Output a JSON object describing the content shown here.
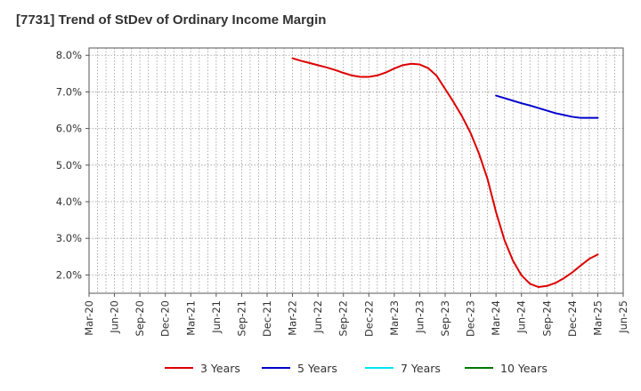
{
  "chart_data": {
    "type": "line",
    "title": "[7731]  Trend of StDev of Ordinary Income Margin",
    "xlabel": "",
    "ylabel": "",
    "x_ticks": [
      "Mar-20",
      "Jun-20",
      "Sep-20",
      "Dec-20",
      "Mar-21",
      "Jun-21",
      "Sep-21",
      "Dec-21",
      "Mar-22",
      "Jun-22",
      "Sep-22",
      "Dec-22",
      "Mar-23",
      "Jun-23",
      "Sep-23",
      "Dec-23",
      "Mar-24",
      "Jun-24",
      "Sep-24",
      "Dec-24",
      "Mar-25",
      "Jun-25"
    ],
    "y_ticks": [
      "2.0%",
      "3.0%",
      "4.0%",
      "5.0%",
      "6.0%",
      "7.0%",
      "8.0%"
    ],
    "ylim": [
      1.5,
      8.2
    ],
    "grid": true,
    "legend_position": "bottom",
    "series": [
      {
        "name": "3 Years",
        "color": "#dd0000",
        "x": [
          "Mar-22",
          "Apr-22",
          "May-22",
          "Jun-22",
          "Jul-22",
          "Aug-22",
          "Sep-22",
          "Oct-22",
          "Nov-22",
          "Dec-22",
          "Jan-23",
          "Feb-23",
          "Mar-23",
          "Apr-23",
          "May-23",
          "Jun-23",
          "Jul-23",
          "Aug-23",
          "Sep-23",
          "Oct-23",
          "Nov-23",
          "Dec-23",
          "Jan-24",
          "Feb-24",
          "Mar-24",
          "Apr-24",
          "May-24",
          "Jun-24",
          "Jul-24",
          "Aug-24",
          "Sep-24",
          "Oct-24",
          "Nov-24",
          "Dec-24",
          "Jan-25",
          "Feb-25",
          "Mar-25"
        ],
        "values": [
          7.92,
          7.85,
          7.79,
          7.73,
          7.67,
          7.6,
          7.52,
          7.45,
          7.41,
          7.41,
          7.45,
          7.53,
          7.64,
          7.73,
          7.77,
          7.75,
          7.65,
          7.44,
          7.08,
          6.72,
          6.33,
          5.88,
          5.31,
          4.62,
          3.72,
          2.95,
          2.39,
          1.99,
          1.76,
          1.67,
          1.7,
          1.78,
          1.91,
          2.07,
          2.26,
          2.44,
          2.56
        ]
      },
      {
        "name": "5 Years",
        "color": "#0000cc",
        "x": [
          "Mar-24",
          "Apr-24",
          "May-24",
          "Jun-24",
          "Jul-24",
          "Aug-24",
          "Sep-24",
          "Oct-24",
          "Nov-24",
          "Dec-24",
          "Jan-25",
          "Feb-25",
          "Mar-25"
        ],
        "values": [
          6.9,
          6.83,
          6.76,
          6.69,
          6.63,
          6.56,
          6.49,
          6.42,
          6.37,
          6.32,
          6.29,
          6.29,
          6.29
        ]
      },
      {
        "name": "7 Years",
        "color": "#00e5ee",
        "x": [],
        "values": []
      },
      {
        "name": "10 Years",
        "color": "#007700",
        "x": [],
        "values": []
      }
    ]
  }
}
